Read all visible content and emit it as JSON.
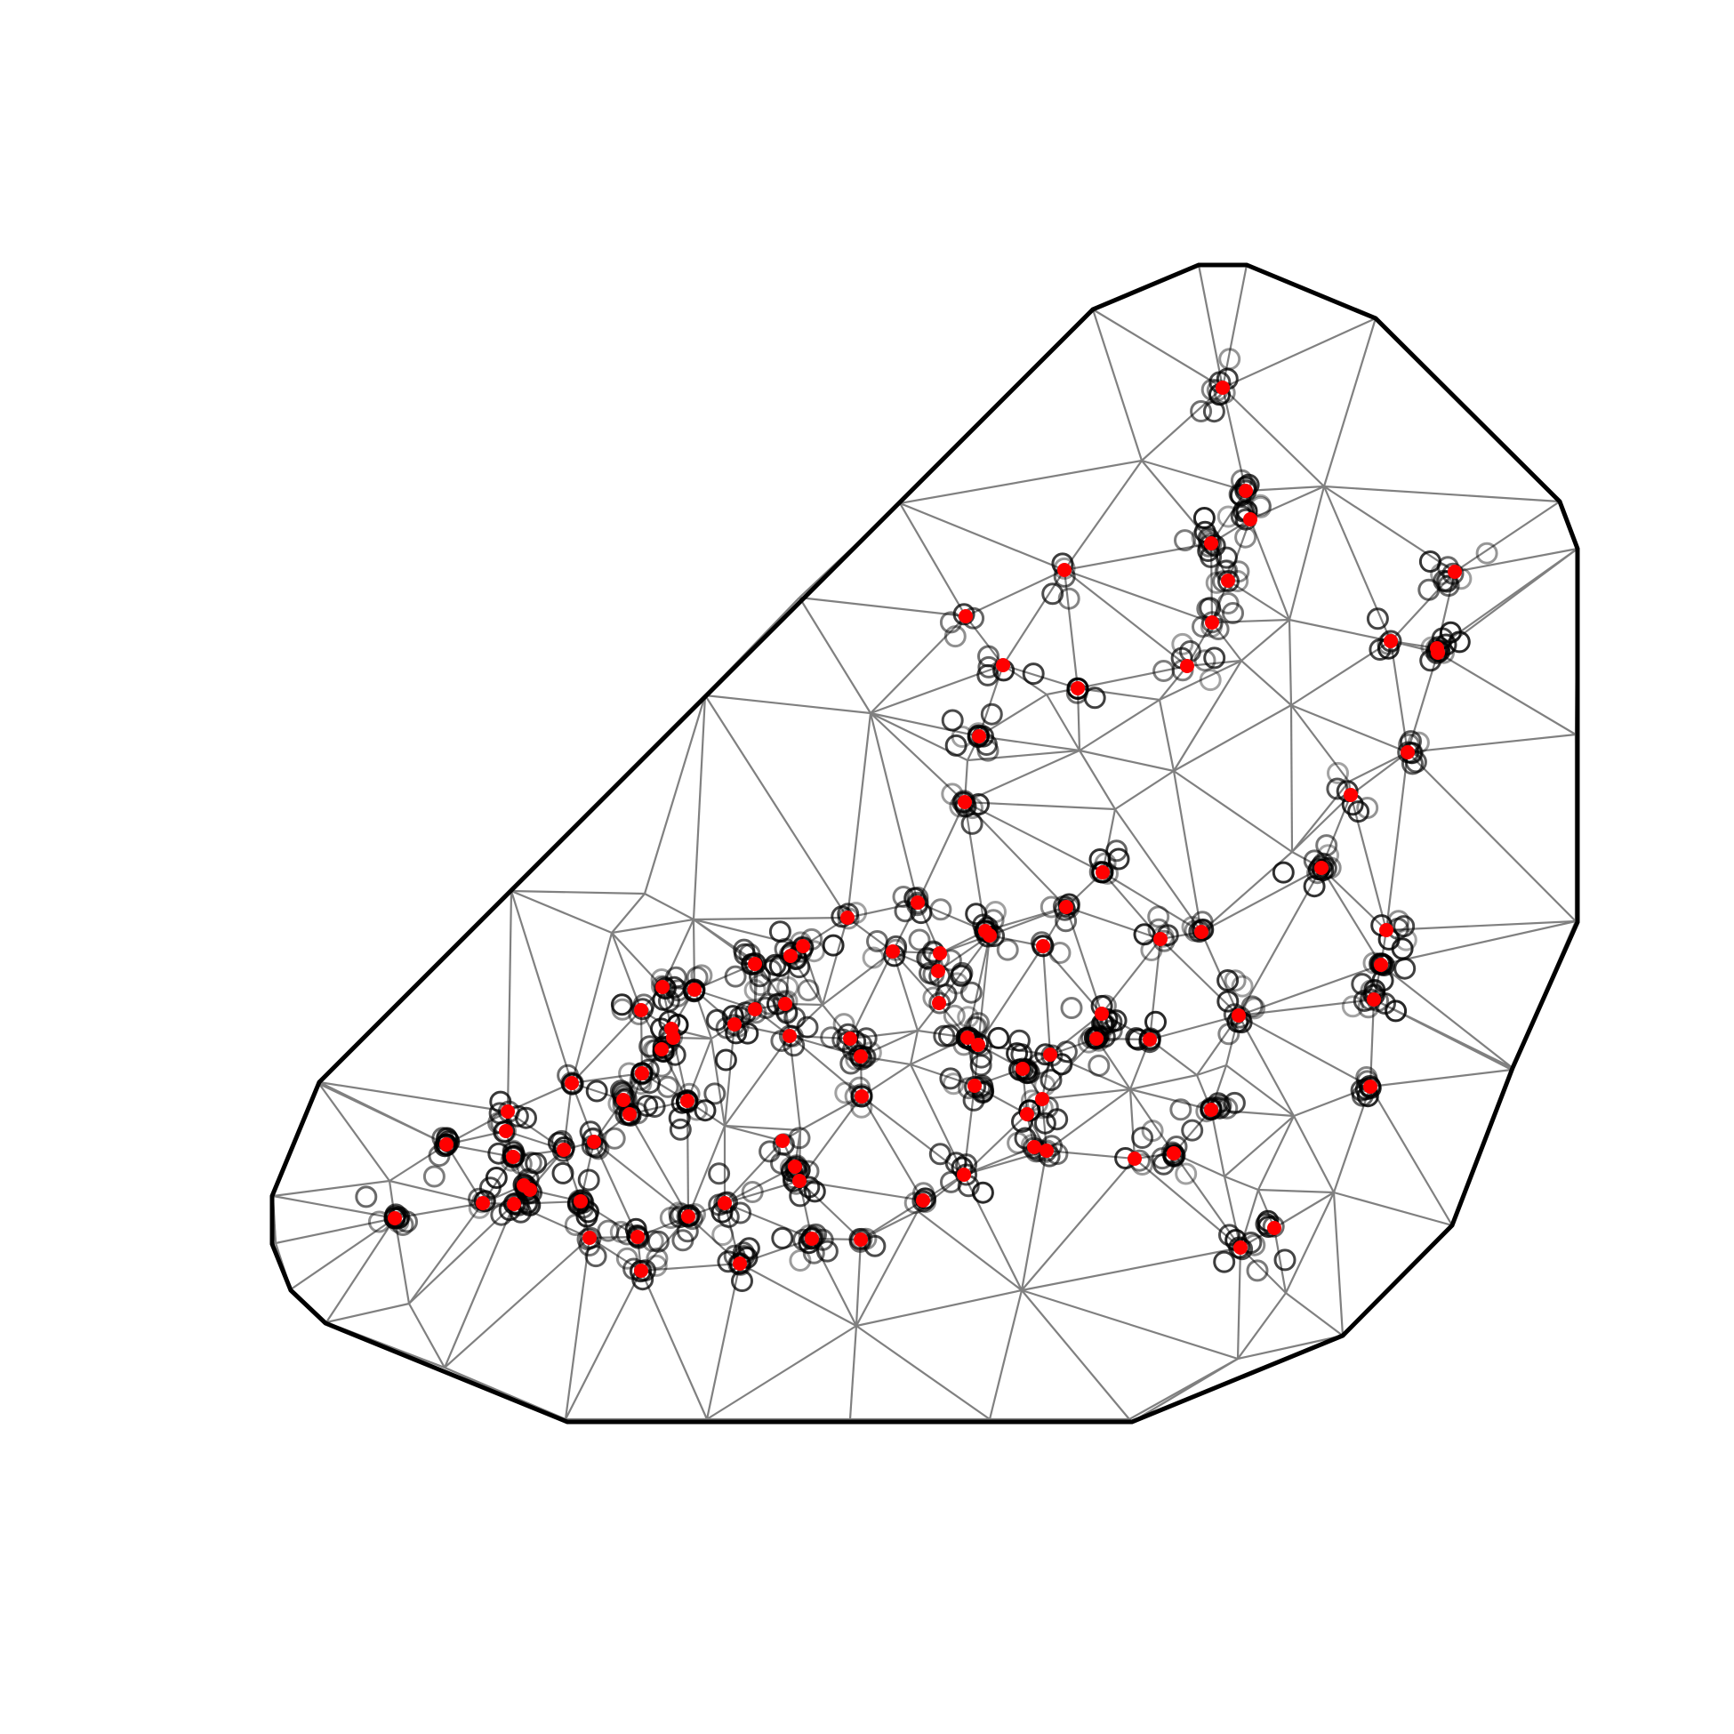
{
  "figure": {
    "title": "",
    "colors": {
      "background": "#ffffff",
      "boundary": "#000000",
      "mesh_edges": "#808080",
      "observations": "#000000",
      "mesh_nodes": "#ff0000"
    }
  }
}
